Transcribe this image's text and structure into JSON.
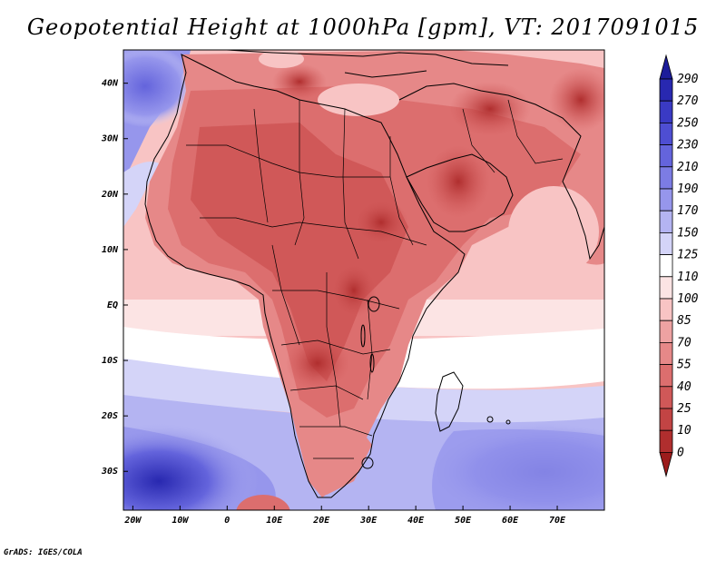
{
  "title": "Geopotential Height at 1000hPa [gpm], VT: 2017091015",
  "credit": "GrADS: IGES/COLA",
  "map": {
    "region": "Africa, Arabian Peninsula, western Indian Ocean",
    "lon_range": [
      -22,
      80
    ],
    "lat_range": [
      -37,
      46
    ],
    "x_ticks": [
      {
        "value": -20,
        "label": "20W"
      },
      {
        "value": -10,
        "label": "10W"
      },
      {
        "value": 0,
        "label": "0"
      },
      {
        "value": 10,
        "label": "10E"
      },
      {
        "value": 20,
        "label": "20E"
      },
      {
        "value": 30,
        "label": "30E"
      },
      {
        "value": 40,
        "label": "40E"
      },
      {
        "value": 50,
        "label": "50E"
      },
      {
        "value": 60,
        "label": "60E"
      },
      {
        "value": 70,
        "label": "70E"
      }
    ],
    "y_ticks": [
      {
        "value": 40,
        "label": "40N"
      },
      {
        "value": 30,
        "label": "30N"
      },
      {
        "value": 20,
        "label": "20N"
      },
      {
        "value": 10,
        "label": "10N"
      },
      {
        "value": 0,
        "label": "EQ"
      },
      {
        "value": -10,
        "label": "10S"
      },
      {
        "value": -20,
        "label": "20S"
      },
      {
        "value": -30,
        "label": "30S"
      }
    ]
  },
  "colorbar": {
    "levels": [
      "290",
      "270",
      "250",
      "230",
      "210",
      "190",
      "170",
      "150",
      "125",
      "110",
      "100",
      "85",
      "70",
      "55",
      "40",
      "25",
      "10",
      "0"
    ],
    "colors": [
      "#1c1c9a",
      "#2828b0",
      "#3a3ac4",
      "#4e4ed2",
      "#6464dc",
      "#7c7ce4",
      "#9696ec",
      "#b4b4f2",
      "#d4d4f8",
      "#ffffff",
      "#fce4e4",
      "#f8c4c4",
      "#eea2a2",
      "#e68888",
      "#dc6e6e",
      "#d05858",
      "#c24444",
      "#b02e2e",
      "#9c1c1c"
    ]
  },
  "legend": {
    "ocean_high": "#7c7ce4",
    "ocean_mid": "#d4d4f8",
    "land_low": "#dc6e6e",
    "land_lower": "#c24444"
  }
}
